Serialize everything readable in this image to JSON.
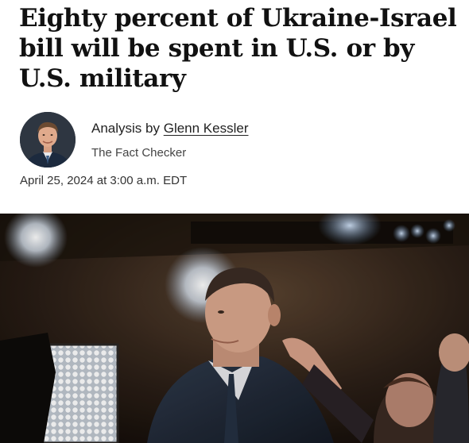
{
  "article": {
    "headline": "Eighty percent of Ukraine-Israel bill will be spent in U.S. or by U.S. military",
    "byline_prefix": "Analysis by",
    "author": "Glenn Kessler",
    "section": "The Fact Checker",
    "timestamp": "April 25, 2024 at 3:00 a.m. EDT"
  },
  "icons": {
    "author_avatar": "author-headshot",
    "lead_photo": "man-in-suit-under-stage-lights-photo"
  },
  "colors": {
    "text": "#111111",
    "secondary_text": "#444444",
    "background": "#ffffff"
  }
}
